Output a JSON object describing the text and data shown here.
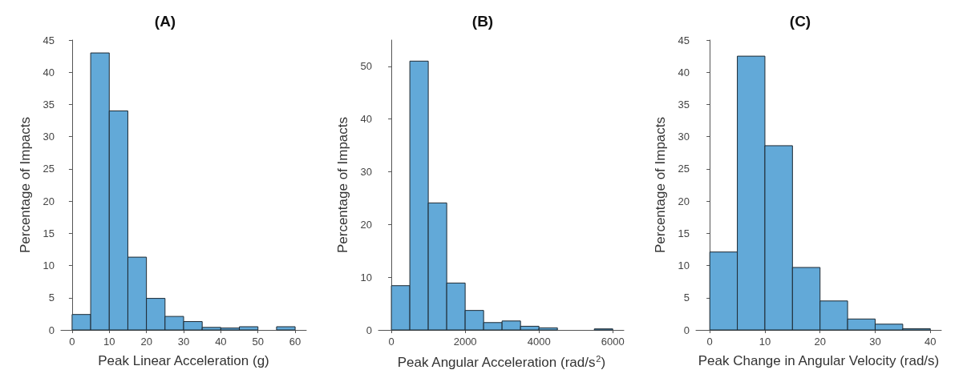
{
  "chart_data": [
    {
      "type": "histogram",
      "title": "(A)",
      "xlabel": "Peak Linear Acceleration (g)",
      "ylabel": "Percentage of Impacts",
      "color": "#62a9d8",
      "bins": [
        0,
        5,
        10,
        15,
        20,
        25,
        30,
        35,
        40,
        45,
        50,
        55,
        60
      ],
      "values": [
        2.4,
        43,
        34,
        11.3,
        4.9,
        2.1,
        1.3,
        0.4,
        0.3,
        0.5,
        0,
        0.5
      ],
      "xlim": [
        -3,
        63
      ],
      "xticks": [
        0,
        10,
        20,
        30,
        40,
        50,
        60
      ],
      "ylim": [
        0,
        45
      ],
      "yticks": [
        0,
        5,
        10,
        15,
        20,
        25,
        30,
        35,
        40,
        45
      ],
      "grid": false
    },
    {
      "type": "histogram",
      "title": "(B)",
      "xlabel": "Peak Angular Acceleration (rad/s$^{2}$)",
      "ylabel": "Percentage of Impacts",
      "color": "#62a9d8",
      "bins": [
        0,
        500,
        1000,
        1500,
        2000,
        2500,
        3000,
        3500,
        4000,
        4500,
        5000,
        5500,
        6000
      ],
      "values": [
        8.4,
        51,
        24.1,
        8.9,
        3.7,
        1.4,
        1.7,
        0.7,
        0.4,
        0,
        0,
        0.2
      ],
      "xlim": [
        -350,
        6300
      ],
      "xticks": [
        0,
        2000,
        4000,
        6000
      ],
      "ylim": [
        0,
        55
      ],
      "yticks": [
        0,
        10,
        20,
        30,
        40,
        50
      ],
      "grid": false
    },
    {
      "type": "histogram",
      "title": "(C)",
      "xlabel": "Peak Change in Angular Velocity (rad/s)",
      "ylabel": "Percentage of Impacts",
      "color": "#62a9d8",
      "bins": [
        0,
        5,
        10,
        15,
        20,
        25,
        30,
        35,
        40
      ],
      "values": [
        12.1,
        42.5,
        28.6,
        9.7,
        4.5,
        1.7,
        0.9,
        0.2
      ],
      "xlim": [
        -2.5,
        42
      ],
      "xticks": [
        0,
        10,
        20,
        30,
        40
      ],
      "ylim": [
        0,
        45
      ],
      "yticks": [
        0,
        5,
        10,
        15,
        20,
        25,
        30,
        35,
        40,
        45
      ],
      "grid": false
    }
  ]
}
